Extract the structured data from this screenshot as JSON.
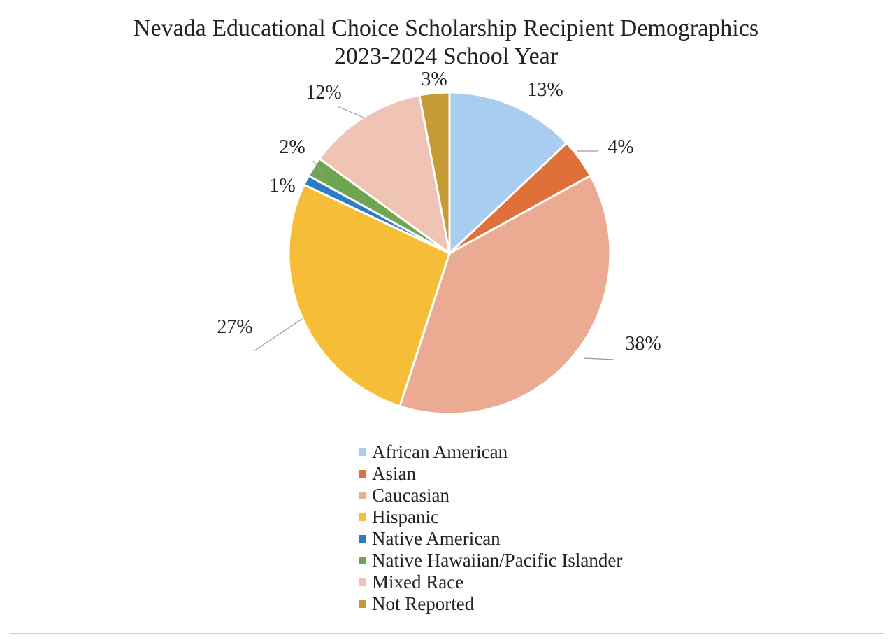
{
  "chart_data": {
    "type": "pie",
    "title": "Nevada Educational Choice Scholarship Recipient Demographics",
    "subtitle": "2023-2024 School Year",
    "legend_position": "bottom",
    "slices": [
      {
        "label": "African American",
        "value": 13,
        "data_label": "13%",
        "color": "#a9cdef"
      },
      {
        "label": "Asian",
        "value": 4,
        "data_label": "4%",
        "color": "#e0703a"
      },
      {
        "label": "Caucasian",
        "value": 38,
        "data_label": "38%",
        "color": "#ebab92"
      },
      {
        "label": "Hispanic",
        "value": 27,
        "data_label": "27%",
        "color": "#f6be38"
      },
      {
        "label": "Native American",
        "value": 1,
        "data_label": "1%",
        "color": "#2a7cc4"
      },
      {
        "label": "Native Hawaiian/Pacific Islander",
        "value": 2,
        "data_label": "2%",
        "color": "#6ea550"
      },
      {
        "label": "Mixed Race",
        "value": 12,
        "data_label": "12%",
        "color": "#f0c4b4"
      },
      {
        "label": "Not Reported",
        "value": 3,
        "data_label": "3%",
        "color": "#c69a35"
      }
    ]
  }
}
